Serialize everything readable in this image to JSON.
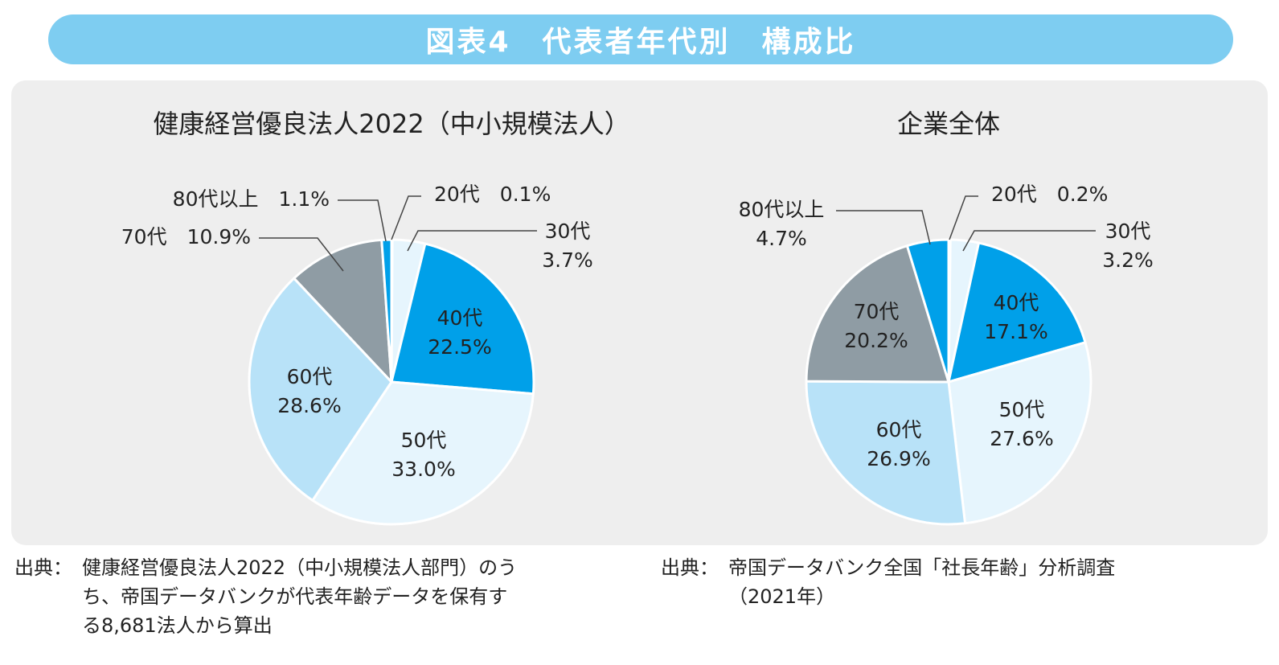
{
  "title": "図表4　代表者年代別　構成比",
  "colors": {
    "title_bar": "#7ecdf1",
    "panel": "#eeeeee",
    "20代": "#e6f5fd",
    "30代": "#e6f5fd",
    "40代": "#00a0e9",
    "50代": "#e6f5fd",
    "60代": "#b8e2f8",
    "70代": "#8f9ca4",
    "80代以上": "#00a0e9"
  },
  "chart_data": [
    {
      "type": "pie",
      "title": "健康経営優良法人2022（中小規模法人）",
      "categories": [
        "20代",
        "30代",
        "40代",
        "50代",
        "60代",
        "70代",
        "80代以上"
      ],
      "values": [
        0.1,
        3.7,
        22.5,
        33.0,
        28.6,
        10.9,
        1.1
      ],
      "labels": [
        {
          "lines": [
            "20代　0.1%"
          ]
        },
        {
          "lines": [
            "30代",
            "3.7%"
          ]
        },
        {
          "lines": [
            "40代",
            "22.5%"
          ]
        },
        {
          "lines": [
            "50代",
            "33.0%"
          ]
        },
        {
          "lines": [
            "60代",
            "28.6%"
          ]
        },
        {
          "lines": [
            "70代　10.9%"
          ]
        },
        {
          "lines": [
            "80代以上　1.1%"
          ]
        }
      ]
    },
    {
      "type": "pie",
      "title": "企業全体",
      "categories": [
        "20代",
        "30代",
        "40代",
        "50代",
        "60代",
        "70代",
        "80代以上"
      ],
      "values": [
        0.2,
        3.2,
        17.1,
        27.6,
        26.9,
        20.2,
        4.7
      ],
      "labels": [
        {
          "lines": [
            "20代　0.2%"
          ]
        },
        {
          "lines": [
            "30代",
            "3.2%"
          ]
        },
        {
          "lines": [
            "40代",
            "17.1%"
          ]
        },
        {
          "lines": [
            "50代",
            "27.6%"
          ]
        },
        {
          "lines": [
            "60代",
            "26.9%"
          ]
        },
        {
          "lines": [
            "70代",
            "20.2%"
          ]
        },
        {
          "lines": [
            "80代以上",
            "4.7%"
          ]
        }
      ]
    }
  ],
  "sources": [
    {
      "label": "出典：",
      "lines": [
        "健康経営優良法人2022（中小規模法人部門）のう",
        "ち、帝国データバンクが代表年齢データを保有す",
        "る8,681法人から算出"
      ]
    },
    {
      "label": "出典：",
      "lines": [
        "帝国データバンク全国「社長年齢」分析調査",
        "（2021年）"
      ]
    }
  ]
}
